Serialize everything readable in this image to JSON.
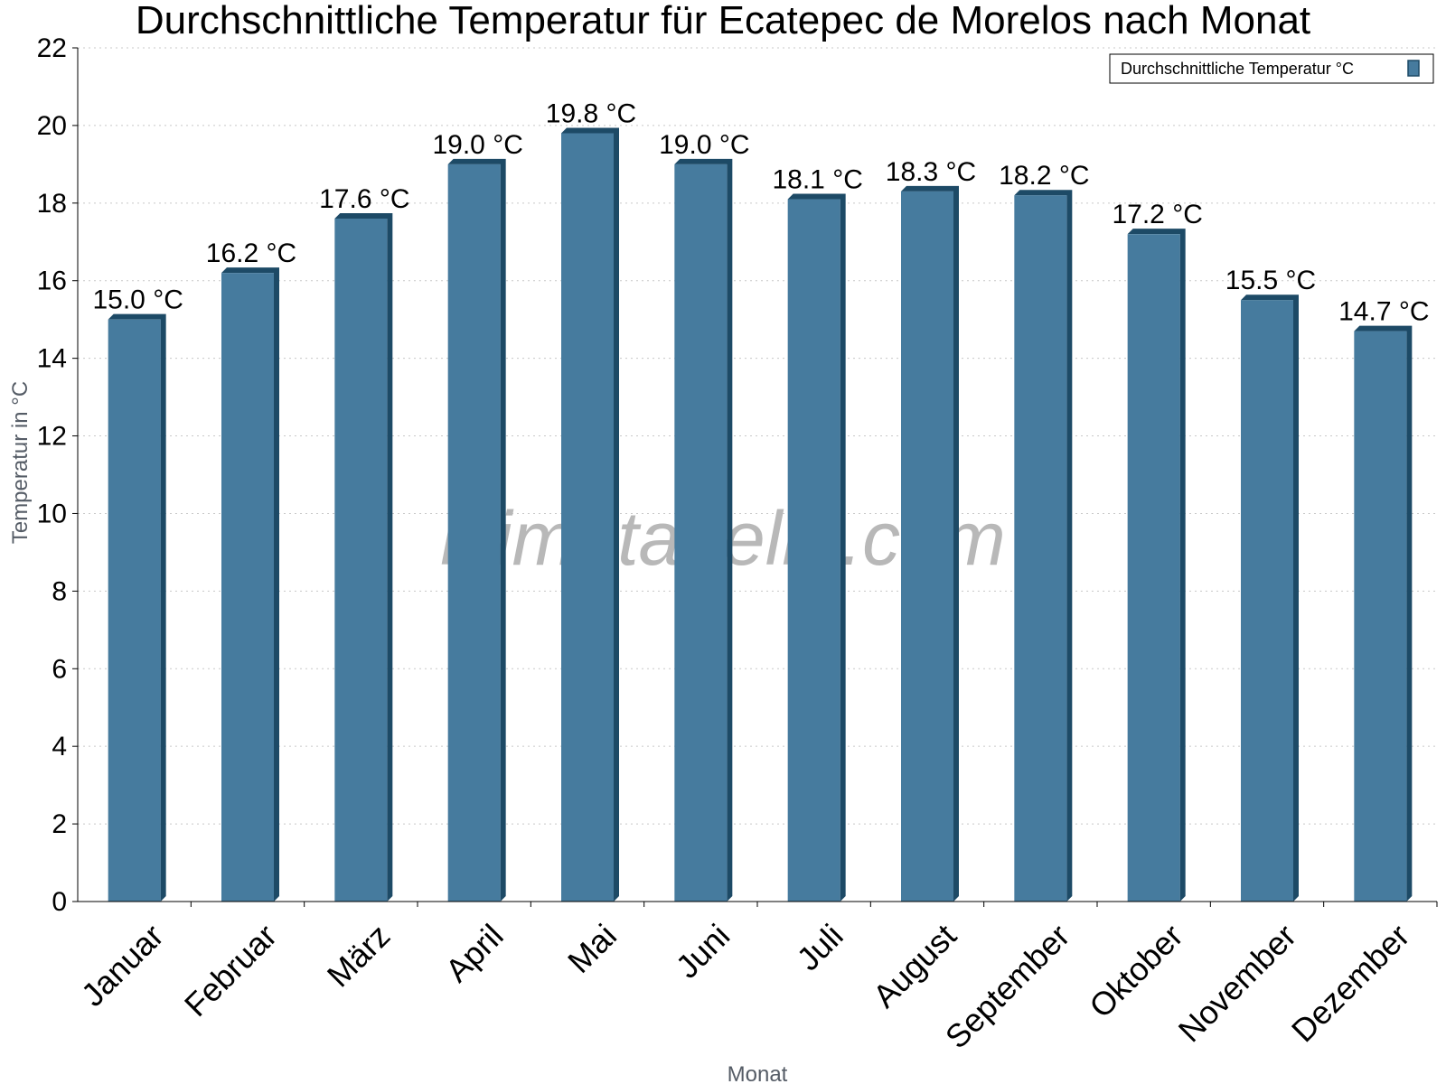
{
  "chart_data": {
    "type": "bar",
    "title": "Durchschnittliche Temperatur für Ecatepec de Morelos nach Monat",
    "xlabel": "Monat",
    "ylabel": "Temperatur in °C",
    "ylim": [
      0,
      22
    ],
    "yticks": [
      0,
      2,
      4,
      6,
      8,
      10,
      12,
      14,
      16,
      18,
      20,
      22
    ],
    "grid": true,
    "legend_position": "top-right",
    "categories": [
      "Januar",
      "Februar",
      "März",
      "April",
      "Mai",
      "Juni",
      "Juli",
      "August",
      "September",
      "Oktober",
      "November",
      "Dezember"
    ],
    "series": [
      {
        "name": "Durchschnittliche Temperatur °C",
        "values": [
          15.0,
          16.2,
          17.6,
          19.0,
          19.8,
          19.0,
          18.1,
          18.3,
          18.2,
          17.2,
          15.5,
          14.7
        ],
        "labels": [
          "15.0 °C",
          "16.2 °C",
          "17.6 °C",
          "19.0 °C",
          "19.8 °C",
          "19.0 °C",
          "18.1 °C",
          "18.3 °C",
          "18.2 °C",
          "17.2 °C",
          "15.5 °C",
          "14.7 °C"
        ],
        "color": "#467b9e",
        "shade_color": "#1d4a66"
      }
    ],
    "watermark": "klimatabelle.com"
  }
}
